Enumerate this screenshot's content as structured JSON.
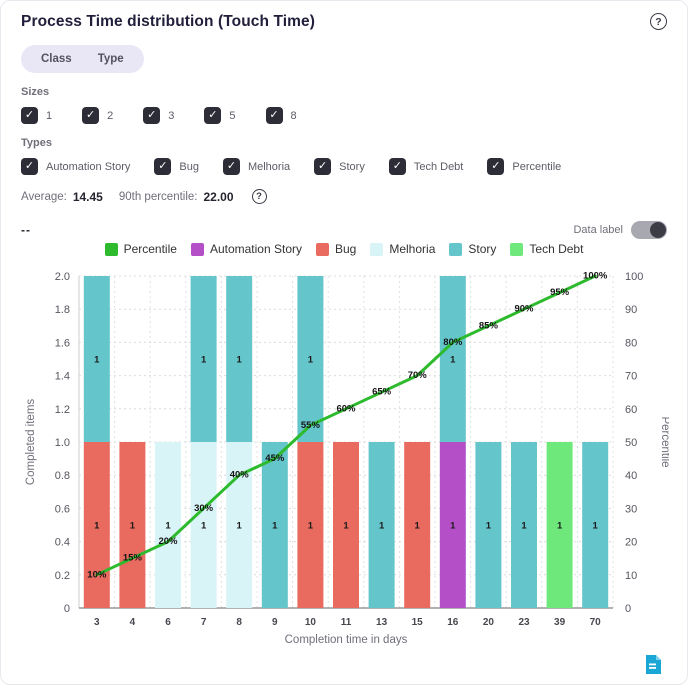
{
  "header": {
    "title": "Process Time distribution (Touch Time)"
  },
  "icons": {
    "check": "✓",
    "help": "?"
  },
  "view_toggle": {
    "options": [
      {
        "label": "Class"
      },
      {
        "label": "Type"
      }
    ]
  },
  "sizes": {
    "label": "Sizes",
    "options": [
      {
        "label": "1",
        "checked": true
      },
      {
        "label": "2",
        "checked": true
      },
      {
        "label": "3",
        "checked": true
      },
      {
        "label": "5",
        "checked": true
      },
      {
        "label": "8",
        "checked": true
      }
    ]
  },
  "types": {
    "label": "Types",
    "options": [
      {
        "label": "Automation Story",
        "checked": true
      },
      {
        "label": "Bug",
        "checked": true
      },
      {
        "label": "Melhoria",
        "checked": true
      },
      {
        "label": "Story",
        "checked": true
      },
      {
        "label": "Tech Debt",
        "checked": true
      },
      {
        "label": "Percentile",
        "checked": true
      }
    ]
  },
  "stats": {
    "average_label": "Average:",
    "average_value": "14.45",
    "percentile_label": "90th percentile:",
    "percentile_value": "22.00"
  },
  "toolbar": {
    "placeholder_text": "--",
    "data_label_toggle": {
      "label": "Data label",
      "on": true
    }
  },
  "legend": [
    {
      "label": "Percentile",
      "color": "#2dbb2d"
    },
    {
      "label": "Automation Story",
      "color": "#b44fc8"
    },
    {
      "label": "Bug",
      "color": "#e96a5e"
    },
    {
      "label": "Melhoria",
      "color": "#d9f4f6"
    },
    {
      "label": "Story",
      "color": "#64c5cb"
    },
    {
      "label": "Tech Debt",
      "color": "#6fe87b"
    }
  ],
  "chart_data": {
    "type": "bar",
    "title": "Process Time distribution (Touch Time)",
    "categories": [
      "3",
      "4",
      "6",
      "7",
      "8",
      "9",
      "10",
      "11",
      "13",
      "15",
      "16",
      "20",
      "23",
      "39",
      "70"
    ],
    "xlabel": "Completion time in days",
    "ylabel_left": "Completed items",
    "ylabel_right": "Percentile",
    "ylim_left": [
      0,
      2.0
    ],
    "ytick_step_left": 0.2,
    "ylim_right": [
      0,
      100
    ],
    "ytick_step_right": 10,
    "grid": true,
    "data_labels": true,
    "bar_series": [
      {
        "name": "Bug",
        "color": "#e96a5e",
        "values": [
          1,
          1,
          0,
          0,
          0,
          0,
          1,
          1,
          0,
          1,
          0,
          0,
          0,
          0,
          0
        ]
      },
      {
        "name": "Melhoria",
        "color": "#d9f4f6",
        "values": [
          0,
          0,
          1,
          1,
          1,
          0,
          0,
          0,
          0,
          0,
          0,
          0,
          0,
          0,
          0
        ]
      },
      {
        "name": "Automation Story",
        "color": "#b44fc8",
        "values": [
          0,
          0,
          0,
          0,
          0,
          0,
          0,
          0,
          0,
          0,
          1,
          0,
          0,
          0,
          0
        ]
      },
      {
        "name": "Tech Debt",
        "color": "#6fe87b",
        "values": [
          0,
          0,
          0,
          0,
          0,
          0,
          0,
          0,
          0,
          0,
          0,
          0,
          0,
          1,
          0
        ]
      },
      {
        "name": "Story",
        "color": "#64c5cb",
        "values": [
          1,
          0,
          0,
          1,
          1,
          1,
          1,
          0,
          1,
          0,
          1,
          1,
          1,
          0,
          1
        ]
      }
    ],
    "line_series": {
      "name": "Percentile",
      "color": "#2dbb2d",
      "label_suffix": "%",
      "values": [
        10,
        15,
        20,
        30,
        40,
        45,
        55,
        60,
        65,
        70,
        80,
        85,
        90,
        95,
        100
      ]
    }
  }
}
